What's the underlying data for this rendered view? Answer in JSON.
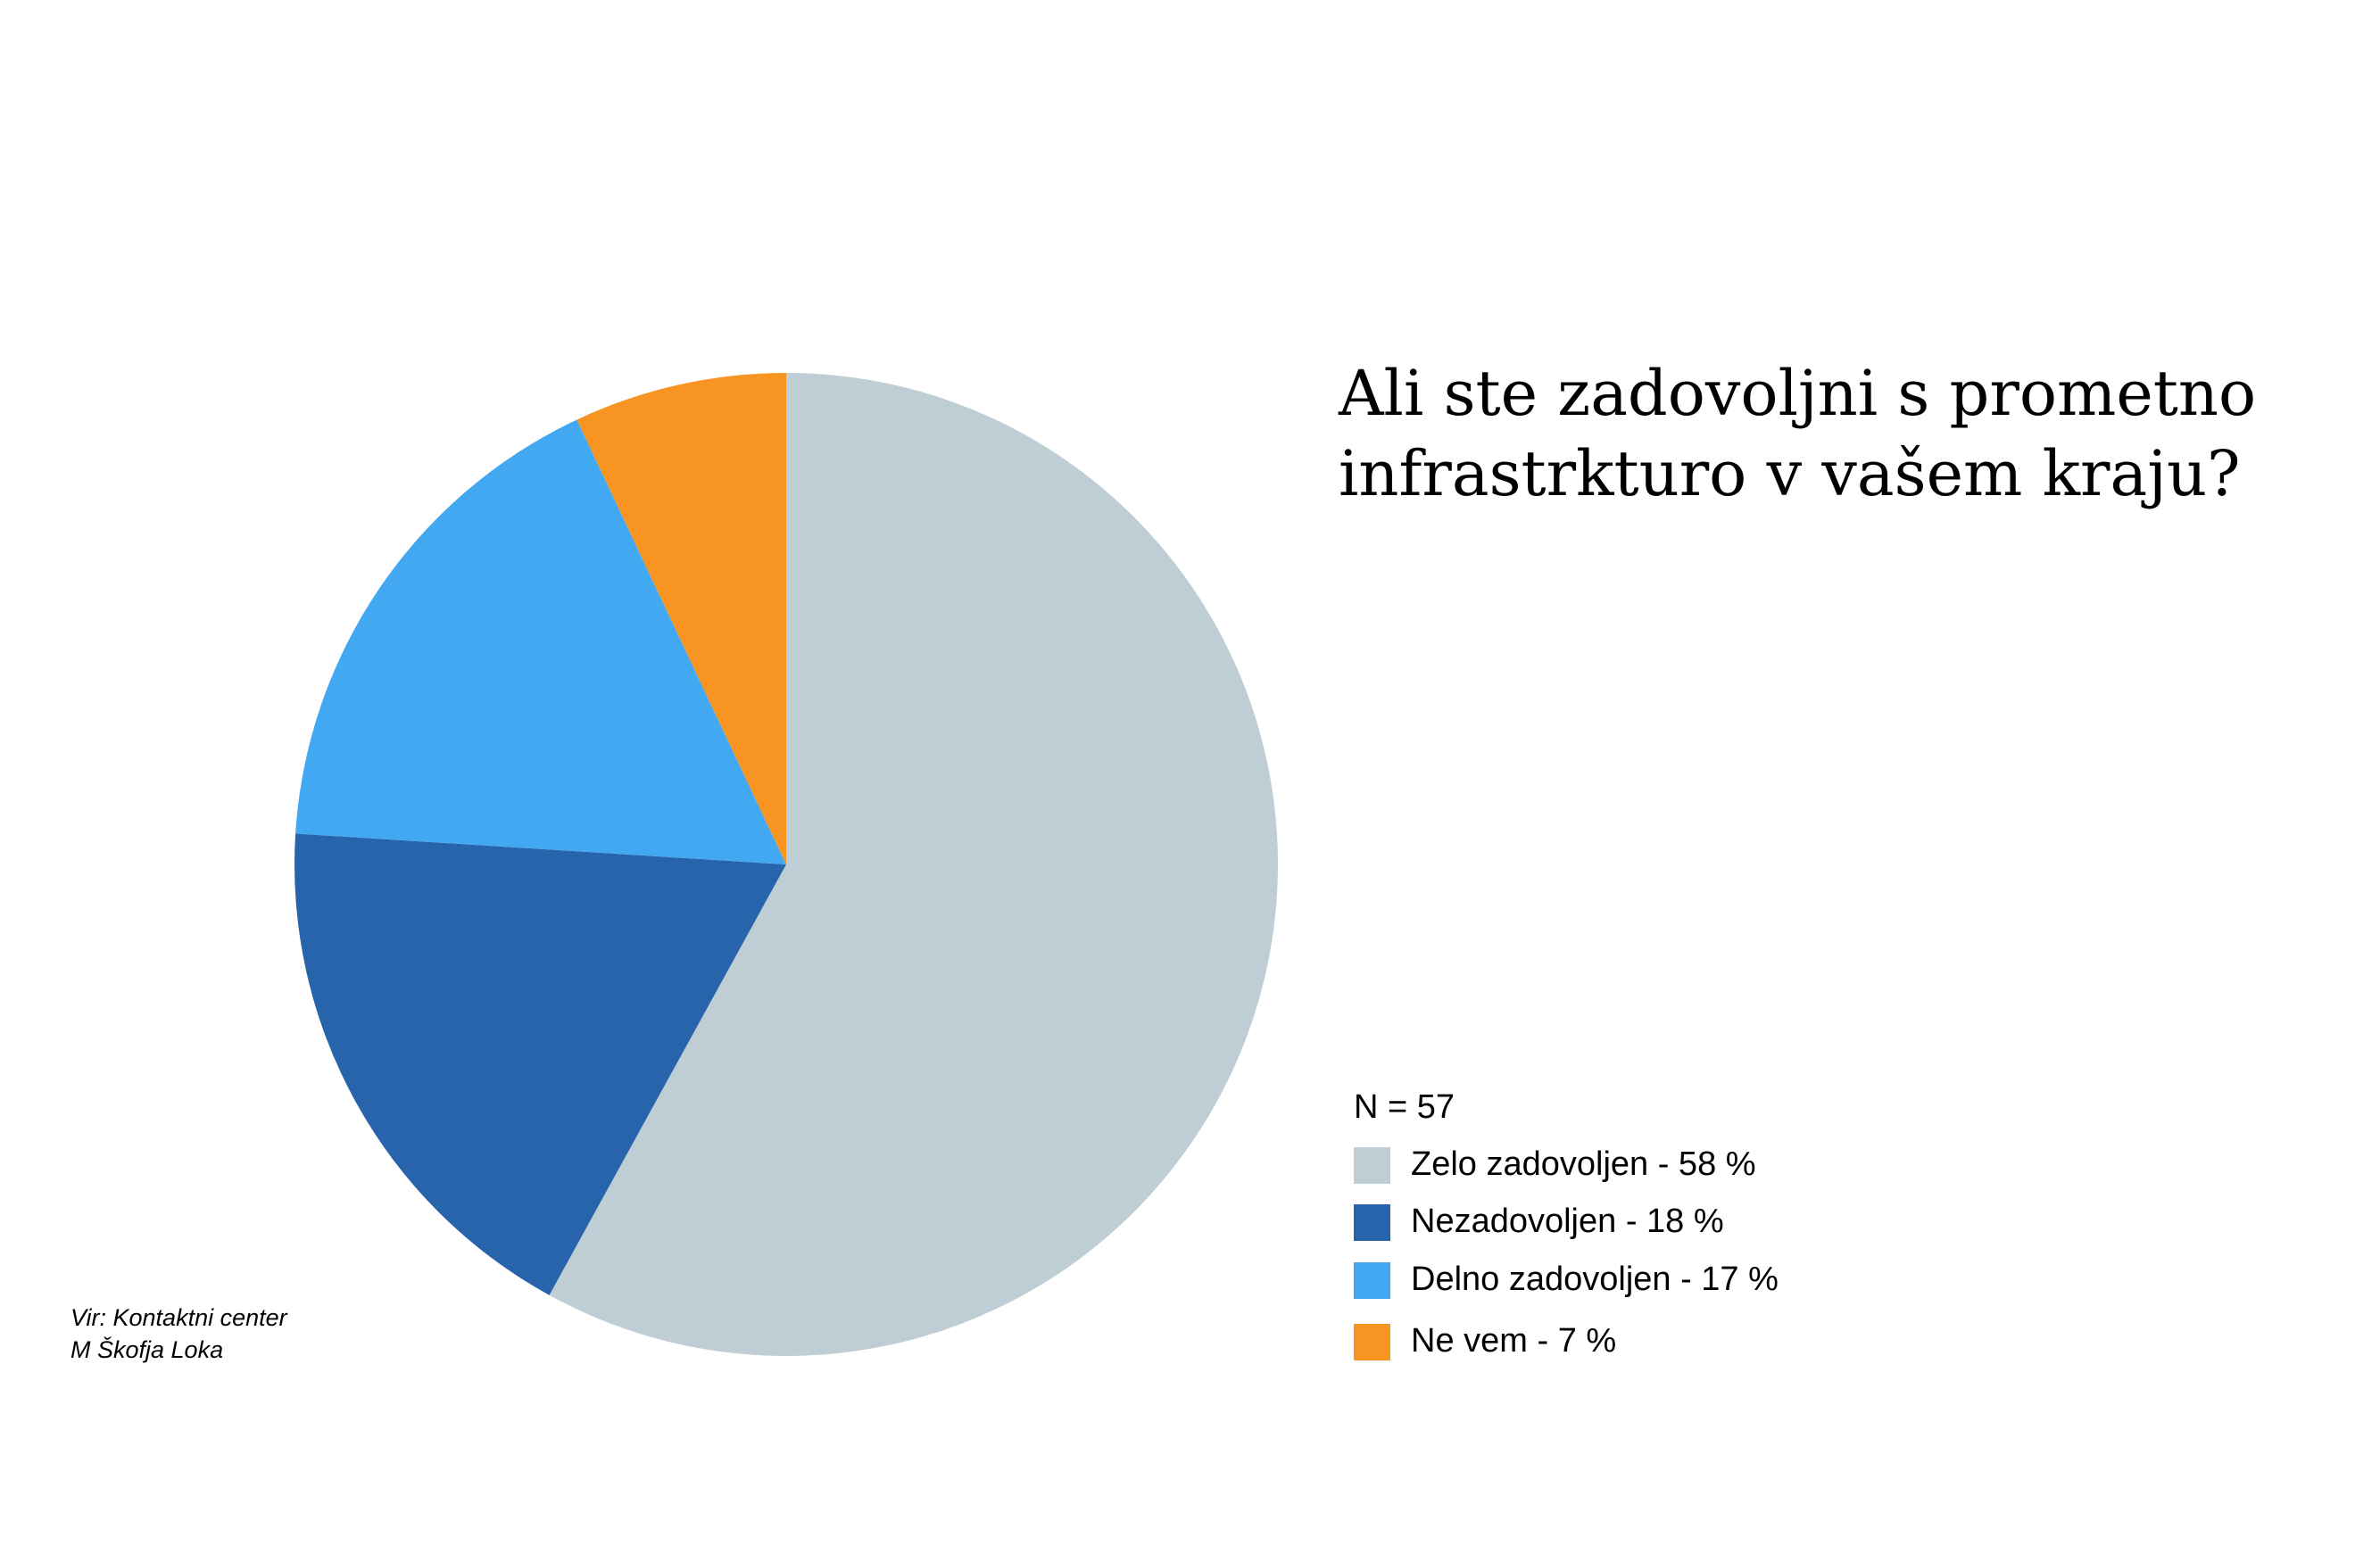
{
  "chart_data": {
    "type": "pie",
    "title": [
      "Ali ste zadovoljni s prometno",
      "infrastrkturo v vašem kraju?"
    ],
    "note": "N = 57",
    "categories": [
      "Zelo zadovoljen - 58 %",
      "Nezadovoljen - 18 %",
      "Delno zadovoljen - 17 %",
      "Ne vem - 7 %"
    ],
    "values": [
      58,
      18,
      17,
      7
    ],
    "colors": [
      "#bfcdd4",
      "#2764ab",
      "#42a8f2",
      "#f79422"
    ],
    "source": [
      "Vir: Kontaktni center",
      "M Škofja Loka"
    ]
  }
}
